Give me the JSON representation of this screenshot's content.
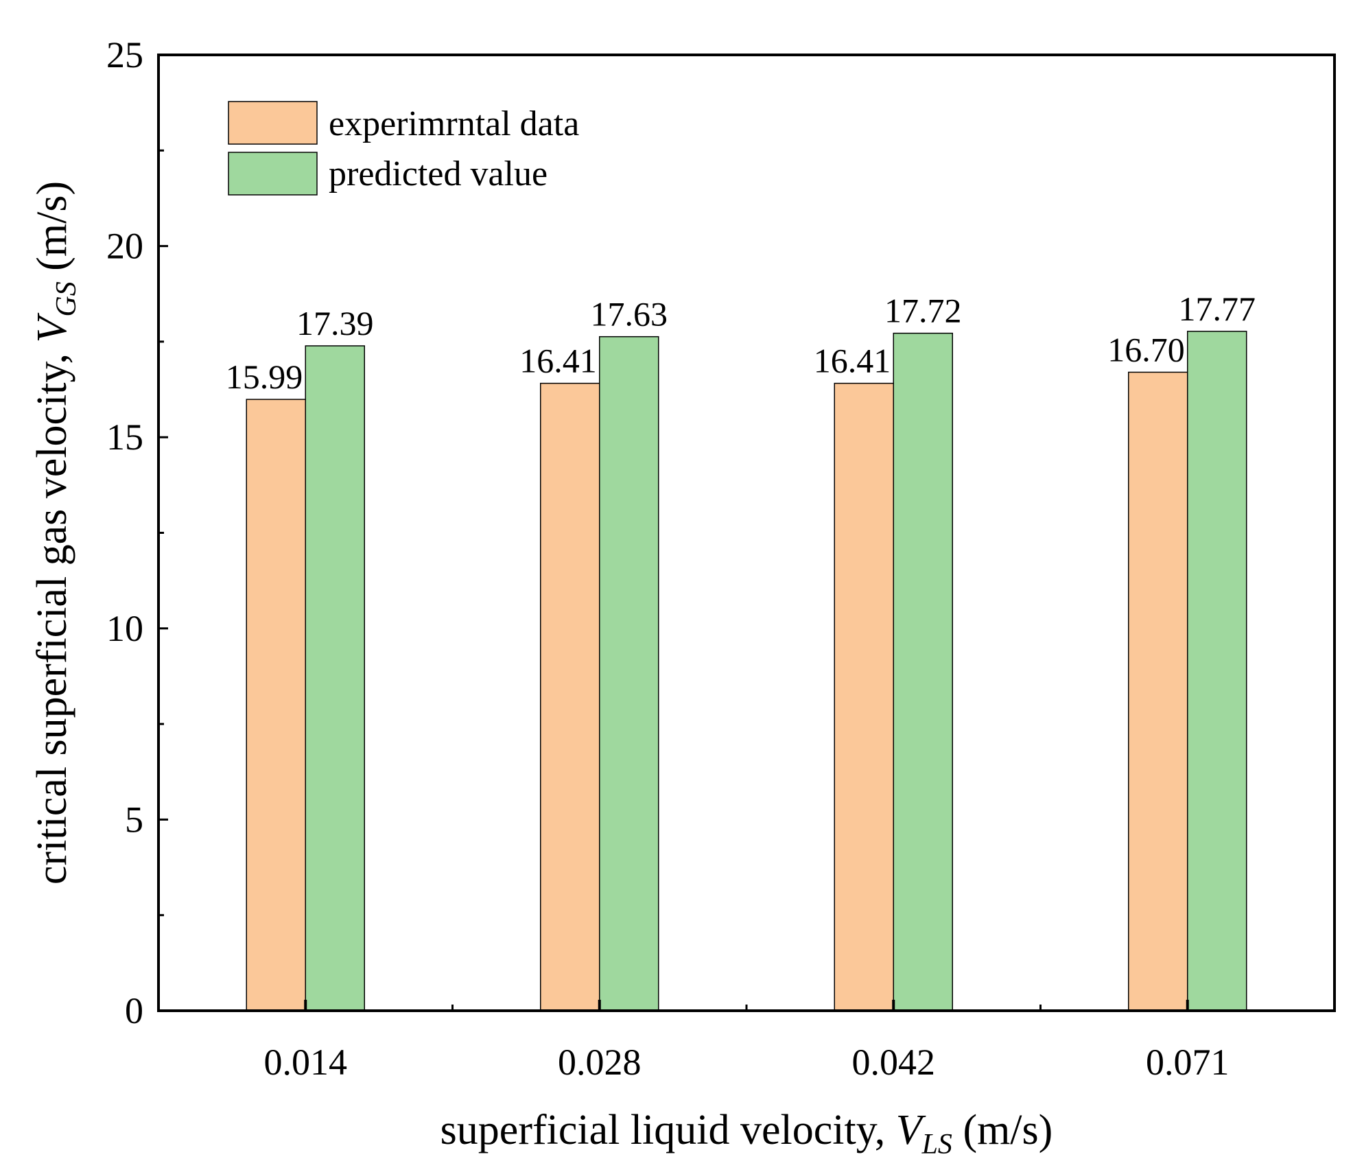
{
  "chart_data": {
    "type": "bar",
    "categories": [
      "0.014",
      "0.028",
      "0.042",
      "0.071"
    ],
    "series": [
      {
        "name": "experimrntal data",
        "values": [
          15.99,
          16.41,
          16.41,
          16.7
        ],
        "labels": [
          "15.99",
          "16.41",
          "16.41",
          "16.70"
        ],
        "color": "#FBC899"
      },
      {
        "name": "predicted value",
        "values": [
          17.39,
          17.63,
          17.72,
          17.77
        ],
        "labels": [
          "17.39",
          "17.63",
          "17.72",
          "17.77"
        ],
        "color": "#9FD89E"
      }
    ],
    "xlabel": {
      "main": "superficial liquid velocity, ",
      "var": "V",
      "sub": "LS",
      "unit": " (m/s)"
    },
    "ylabel": {
      "main": "critical superficial gas velocity, ",
      "var": "V",
      "sub": "GS",
      "unit": " (m/s)"
    },
    "ylim": [
      0,
      25
    ],
    "yticks": [
      0,
      5,
      10,
      15,
      20,
      25
    ],
    "ytick_labels": [
      "0",
      "5",
      "10",
      "15",
      "20",
      "25"
    ],
    "legend_position": "top-left",
    "grid": false
  }
}
